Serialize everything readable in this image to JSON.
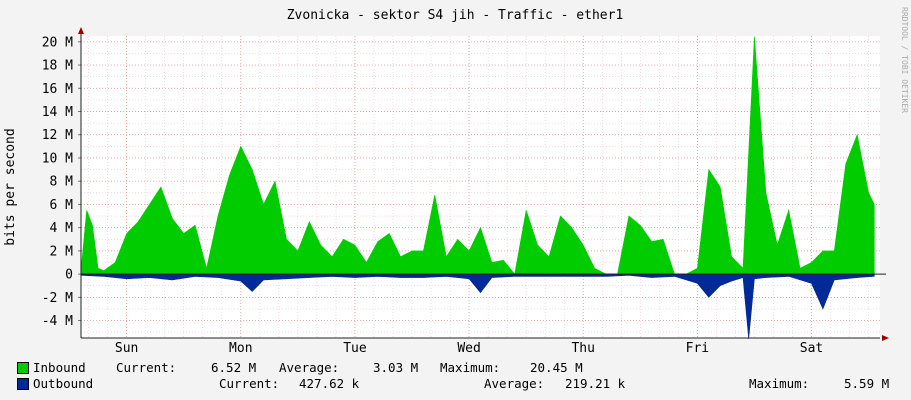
{
  "chart_data": {
    "type": "area",
    "title": "Zvonicka - sektor S4 jih - Traffic - ether1",
    "ylabel": "bits per second",
    "watermark": "RRDTOOL / TOBI OETIKER",
    "ylim": [
      -5.5,
      20.5
    ],
    "y_ticks": [
      -4,
      -2,
      0,
      2,
      4,
      6,
      8,
      10,
      12,
      14,
      16,
      18,
      20
    ],
    "y_tick_labels": [
      "-4 M",
      "-2 M",
      "0",
      "2 M",
      "4 M",
      "6 M",
      "8 M",
      "10 M",
      "12 M",
      "14 M",
      "16 M",
      "18 M",
      "20 M"
    ],
    "x_ticks": [
      0,
      1,
      2,
      3,
      4,
      5,
      6
    ],
    "x_tick_labels": [
      "Sun",
      "Mon",
      "Tue",
      "Wed",
      "Thu",
      "Fri",
      "Sat"
    ],
    "xlim": [
      -0.4,
      6.6
    ],
    "grid": true,
    "series": [
      {
        "name": "Inbound",
        "color": "#00cc00",
        "x": [
          -0.4,
          -0.35,
          -0.3,
          -0.25,
          -0.2,
          -0.1,
          0.0,
          0.1,
          0.2,
          0.3,
          0.4,
          0.5,
          0.6,
          0.7,
          0.8,
          0.9,
          1.0,
          1.1,
          1.2,
          1.3,
          1.4,
          1.5,
          1.6,
          1.7,
          1.8,
          1.9,
          2.0,
          2.1,
          2.2,
          2.3,
          2.4,
          2.5,
          2.6,
          2.7,
          2.8,
          2.9,
          3.0,
          3.1,
          3.2,
          3.3,
          3.4,
          3.5,
          3.6,
          3.7,
          3.8,
          3.9,
          4.0,
          4.1,
          4.2,
          4.3,
          4.4,
          4.5,
          4.6,
          4.7,
          4.8,
          4.9,
          5.0,
          5.1,
          5.2,
          5.3,
          5.4,
          5.5,
          5.6,
          5.7,
          5.8,
          5.9,
          6.0,
          6.1,
          6.2,
          6.3,
          6.4,
          6.5,
          6.55
        ],
        "values": [
          0.3,
          5.5,
          4.2,
          0.5,
          0.3,
          1.0,
          3.5,
          4.5,
          6.0,
          7.5,
          4.8,
          3.5,
          4.2,
          0.5,
          5.0,
          8.5,
          11.0,
          9.0,
          6.0,
          8.0,
          3.0,
          2.0,
          4.5,
          2.5,
          1.5,
          3.0,
          2.5,
          1.0,
          2.8,
          3.5,
          1.5,
          2.0,
          2.0,
          6.8,
          1.5,
          3.0,
          2.0,
          4.0,
          1.0,
          1.2,
          0.0,
          5.5,
          2.5,
          1.5,
          5.0,
          4.0,
          2.5,
          0.5,
          0.0,
          0.0,
          5.0,
          4.2,
          2.8,
          3.0,
          0.0,
          0.0,
          0.5,
          9.0,
          7.5,
          1.5,
          0.5,
          20.45,
          7.0,
          2.5,
          5.5,
          0.5,
          1.0,
          2.0,
          2.0,
          9.5,
          12.0,
          7.0,
          6.0
        ]
      },
      {
        "name": "Outbound",
        "color": "#002a97",
        "x": [
          -0.4,
          -0.2,
          0.0,
          0.2,
          0.4,
          0.6,
          0.8,
          1.0,
          1.1,
          1.2,
          1.4,
          1.6,
          1.8,
          2.0,
          2.2,
          2.4,
          2.6,
          2.8,
          3.0,
          3.1,
          3.2,
          3.4,
          3.6,
          3.8,
          4.0,
          4.2,
          4.4,
          4.6,
          4.8,
          5.0,
          5.1,
          5.2,
          5.3,
          5.4,
          5.45,
          5.5,
          5.6,
          5.8,
          6.0,
          6.1,
          6.2,
          6.4,
          6.55
        ],
        "values": [
          -0.1,
          -0.2,
          -0.4,
          -0.3,
          -0.5,
          -0.2,
          -0.3,
          -0.6,
          -1.5,
          -0.5,
          -0.4,
          -0.3,
          -0.2,
          -0.3,
          -0.2,
          -0.3,
          -0.3,
          -0.2,
          -0.4,
          -1.6,
          -0.3,
          -0.2,
          -0.2,
          -0.2,
          -0.2,
          -0.2,
          -0.1,
          -0.3,
          -0.2,
          -0.8,
          -2.0,
          -1.0,
          -0.6,
          -0.3,
          -5.59,
          -0.4,
          -0.3,
          -0.2,
          -0.8,
          -3.0,
          -0.5,
          -0.3,
          -0.2
        ]
      }
    ]
  },
  "legend": [
    {
      "name": "Inbound",
      "color": "#00cc00",
      "current_label": "Current:",
      "current_value": "6.52 M",
      "average_label": "Average:",
      "average_value": "3.03 M",
      "maximum_label": "Maximum:",
      "maximum_value": "20.45 M"
    },
    {
      "name": "Outbound",
      "color": "#002a97",
      "current_label": "Current:",
      "current_value": "427.62 k",
      "average_label": "Average:",
      "average_value": "219.21 k",
      "maximum_label": "Maximum:",
      "maximum_value": "5.59 M"
    }
  ]
}
